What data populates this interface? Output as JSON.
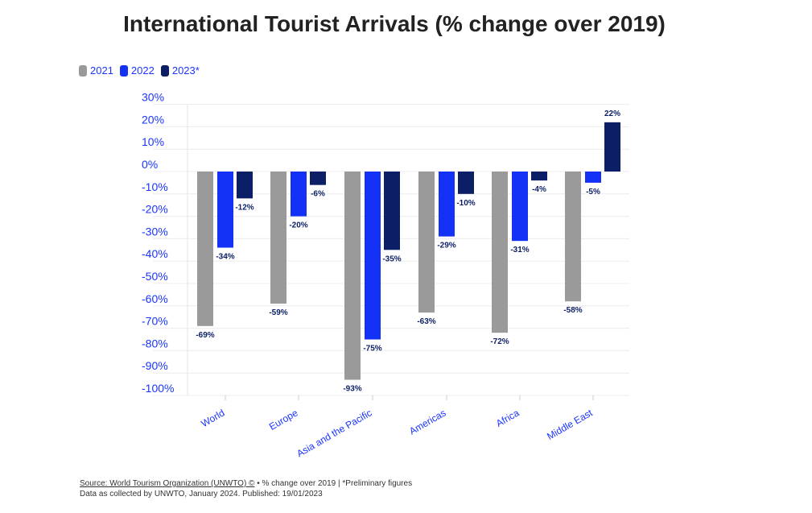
{
  "chart_data": {
    "type": "bar",
    "title": "International Tourist Arrivals (% change over 2019)",
    "categories": [
      "World",
      "Europe",
      "Asia and the Pacific",
      "Americas",
      "Africa",
      "Middle East"
    ],
    "series": [
      {
        "name": "2021",
        "color": "#9a9a9a",
        "values": [
          -69,
          -59,
          -93,
          -63,
          -72,
          -58
        ]
      },
      {
        "name": "2022",
        "color": "#1432f5",
        "values": [
          -34,
          -20,
          -75,
          -29,
          -31,
          -5
        ]
      },
      {
        "name": "2023*",
        "color": "#0b1e66",
        "values": [
          -12,
          -6,
          -35,
          -10,
          -4,
          22
        ]
      }
    ],
    "ylim": [
      -100,
      30
    ],
    "yticks": [
      30,
      20,
      10,
      0,
      -10,
      -20,
      -30,
      -40,
      -50,
      -60,
      -70,
      -80,
      -90,
      -100
    ],
    "ytick_format": "%",
    "grid": true,
    "legend": "top-left",
    "xlabel": "",
    "ylabel": ""
  },
  "footer": {
    "source_link": "Source: World Tourism Organization (UNWTO) ©",
    "source_rest": " • % change over 2019 | *Preliminary figures",
    "line2": "Data as collected by UNWTO, January 2024. Published: 19/01/2023"
  }
}
